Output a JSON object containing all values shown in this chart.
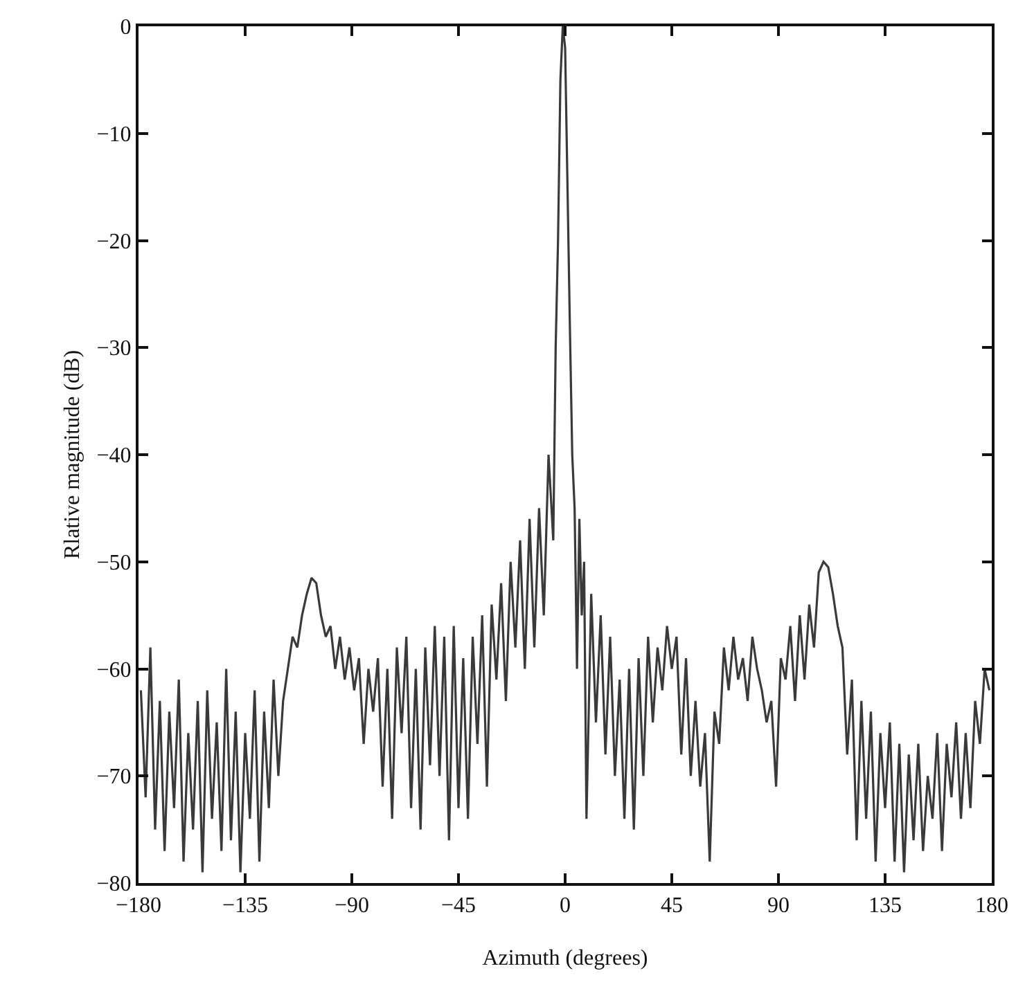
{
  "chart_data": {
    "type": "line",
    "xlabel": "Azimuth (degrees)",
    "ylabel": "Rlative magnitude (dB)",
    "xlim": [
      -180,
      180
    ],
    "xticks": [
      -180,
      -135,
      -90,
      -45,
      0,
      45,
      90,
      135,
      180
    ],
    "ylim": [
      -80,
      0
    ],
    "yticks": [
      -80,
      -70,
      -60,
      -50,
      -40,
      -30,
      -20,
      -10,
      0
    ],
    "grid": false,
    "marker": "none",
    "line_style": "solid",
    "x": [
      -179,
      -177,
      -175,
      -173,
      -171,
      -169,
      -167,
      -165,
      -163,
      -161,
      -159,
      -157,
      -155,
      -153,
      -151,
      -149,
      -147,
      -145,
      -143,
      -141,
      -139,
      -137,
      -135,
      -133,
      -131,
      -129,
      -127,
      -125,
      -123,
      -121,
      -119,
      -117,
      -115,
      -113,
      -111,
      -109,
      -107,
      -105,
      -103,
      -101,
      -99,
      -97,
      -95,
      -93,
      -91,
      -89,
      -87,
      -85,
      -83,
      -81,
      -79,
      -77,
      -75,
      -73,
      -71,
      -69,
      -67,
      -65,
      -63,
      -61,
      -59,
      -57,
      -55,
      -53,
      -51,
      -49,
      -47,
      -45,
      -43,
      -41,
      -39,
      -37,
      -35,
      -33,
      -31,
      -29,
      -27,
      -25,
      -23,
      -21,
      -19,
      -17,
      -15,
      -13,
      -11,
      -9,
      -7,
      -5,
      -4,
      -3,
      -2,
      -1,
      0,
      1,
      2,
      3,
      4,
      5,
      6,
      7,
      8,
      9,
      11,
      13,
      15,
      17,
      19,
      21,
      23,
      25,
      27,
      29,
      31,
      33,
      35,
      37,
      39,
      41,
      43,
      45,
      47,
      49,
      51,
      53,
      55,
      57,
      59,
      61,
      63,
      65,
      67,
      69,
      71,
      73,
      75,
      77,
      79,
      81,
      83,
      85,
      87,
      89,
      91,
      93,
      95,
      97,
      99,
      101,
      103,
      105,
      107,
      109,
      111,
      113,
      115,
      117,
      119,
      121,
      123,
      125,
      127,
      129,
      131,
      133,
      135,
      137,
      139,
      141,
      143,
      145,
      147,
      149,
      151,
      153,
      155,
      157,
      159,
      161,
      163,
      165,
      167,
      169,
      171,
      173,
      175,
      177,
      179
    ],
    "series": [
      {
        "color": "#3a3a3a",
        "values": [
          -62,
          -72,
          -58,
          -75,
          -63,
          -77,
          -64,
          -73,
          -61,
          -78,
          -66,
          -75,
          -63,
          -79,
          -62,
          -74,
          -65,
          -77,
          -60,
          -76,
          -64,
          -79,
          -66,
          -74,
          -62,
          -78,
          -64,
          -73,
          -61,
          -70,
          -63,
          -60,
          -57,
          -58,
          -55,
          -53,
          -51.5,
          -52,
          -55,
          -57,
          -56,
          -60,
          -57,
          -61,
          -58,
          -62,
          -59,
          -67,
          -60,
          -64,
          -59,
          -71,
          -60,
          -74,
          -58,
          -66,
          -57,
          -73,
          -60,
          -75,
          -58,
          -69,
          -56,
          -70,
          -57,
          -76,
          -56,
          -73,
          -59,
          -74,
          -57,
          -67,
          -55,
          -71,
          -54,
          -61,
          -52,
          -63,
          -50,
          -58,
          -48,
          -60,
          -46,
          -58,
          -45,
          -55,
          -40,
          -48,
          -30,
          -20,
          -5,
          0,
          -2,
          -15,
          -28,
          -40,
          -45,
          -60,
          -46,
          -55,
          -50,
          -74,
          -53,
          -65,
          -55,
          -68,
          -57,
          -70,
          -61,
          -74,
          -60,
          -75,
          -59,
          -70,
          -57,
          -65,
          -58,
          -62,
          -56,
          -60,
          -57,
          -68,
          -59,
          -70,
          -63,
          -71,
          -66,
          -78,
          -64,
          -67,
          -58,
          -62,
          -57,
          -61,
          -59,
          -63,
          -57,
          -60,
          -62,
          -65,
          -63,
          -71,
          -59,
          -61,
          -56,
          -63,
          -55,
          -61,
          -54,
          -58,
          -51,
          -50,
          -50.5,
          -53,
          -56,
          -58,
          -68,
          -61,
          -76,
          -63,
          -74,
          -64,
          -78,
          -66,
          -73,
          -65,
          -78,
          -67,
          -79,
          -68,
          -76,
          -67,
          -77,
          -70,
          -74,
          -66,
          -77,
          -67,
          -72,
          -65,
          -74,
          -66,
          -73,
          -63,
          -67,
          -60,
          -62
        ]
      }
    ]
  }
}
